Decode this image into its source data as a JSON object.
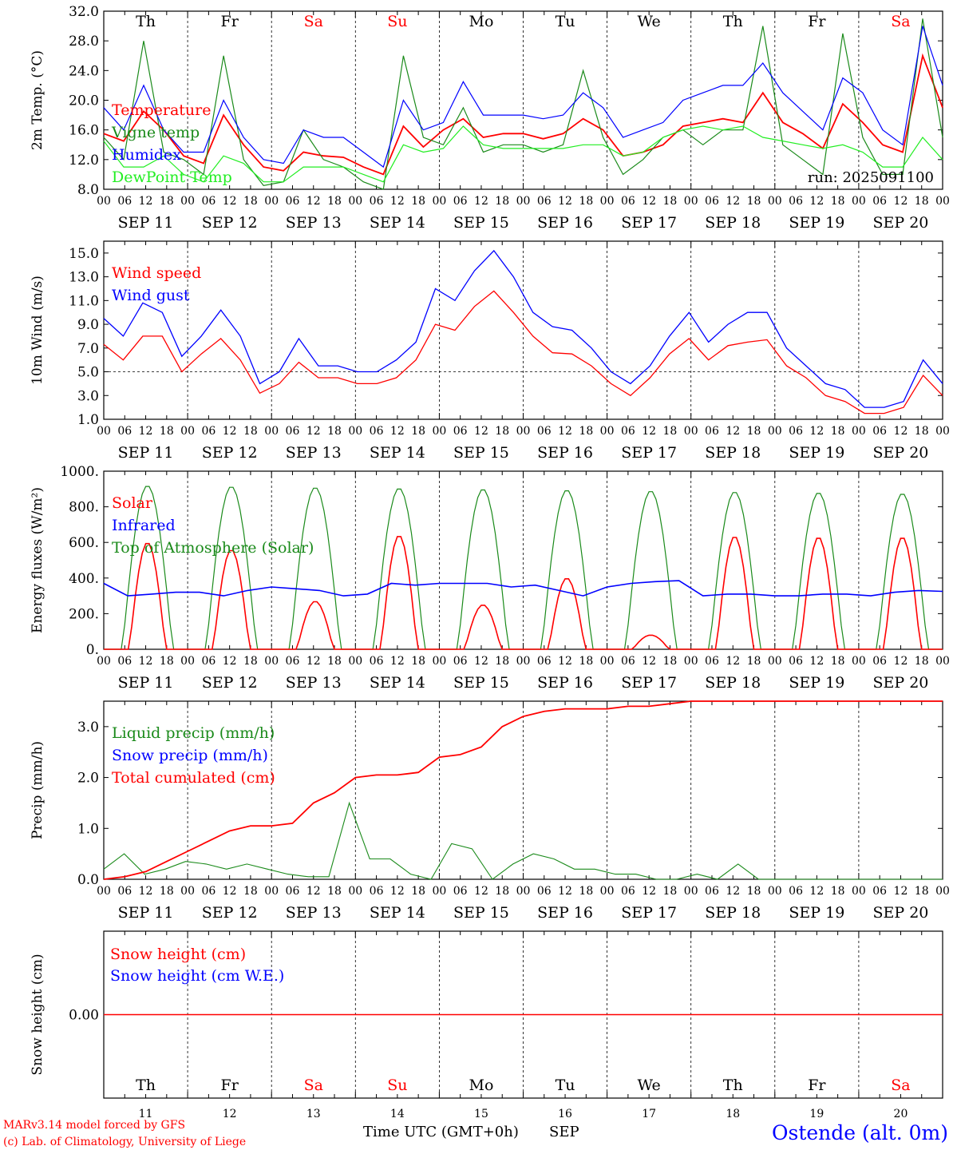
{
  "footer": {
    "model": "MARv3.14 model forced by GFS",
    "credit": "(c) Lab. of Climatology, University of Liege",
    "xlabel": "Time UTC (GMT+0h)",
    "month": "SEP",
    "station": "Ostende (alt. 0m)"
  },
  "colors": {
    "red": "#ff0000",
    "green": "#1a8a1a",
    "blue": "#0000ff",
    "lightgreen": "#22ee22",
    "axis": "#000000"
  },
  "days": [
    "Th",
    "Fr",
    "Sa",
    "Su",
    "Mo",
    "Tu",
    "We",
    "Th",
    "Fr",
    "Sa"
  ],
  "day_colors": [
    "#000000",
    "#000000",
    "#ff0000",
    "#ff0000",
    "#000000",
    "#000000",
    "#000000",
    "#000000",
    "#000000",
    "#ff0000"
  ],
  "dates": [
    "SEP 11",
    "SEP 12",
    "SEP 13",
    "SEP 14",
    "SEP 15",
    "SEP 16",
    "SEP 17",
    "SEP 18",
    "SEP 19",
    "SEP 20"
  ],
  "day_numbers": [
    "11",
    "12",
    "13",
    "14",
    "15",
    "16",
    "17",
    "18",
    "19",
    "20"
  ],
  "hour_ticks": [
    "00",
    "06",
    "12",
    "18"
  ],
  "chart_data": [
    {
      "type": "line",
      "ylabel": "2m Temp. (°C)",
      "ylim": [
        8,
        32
      ],
      "yticks": [
        "8.0",
        "12.0",
        "16.0",
        "20.0",
        "24.0",
        "28.0",
        "32.0"
      ],
      "run_label": "run: 2025091100",
      "x_unit": "hours since SEP 11 00 UTC (step 6h)",
      "series": [
        {
          "name": "Temperature",
          "color": "#ff0000",
          "values": [
            15.5,
            14.5,
            18.5,
            16,
            12.5,
            11.5,
            18,
            14,
            11,
            10.5,
            13,
            12.5,
            12.3,
            11,
            10,
            16.5,
            13.7,
            16,
            17.5,
            15,
            15.5,
            15.5,
            14.8,
            15.5,
            17.5,
            16,
            12.5,
            13,
            14,
            16.5,
            17,
            17.5,
            17,
            21,
            17,
            15.5,
            13.5,
            19.5,
            17,
            14,
            13,
            26,
            19
          ]
        },
        {
          "name": "Vigne temp",
          "color": "#1a8a1a",
          "values": [
            15,
            12,
            28,
            13,
            12,
            10,
            26,
            12,
            8.5,
            9,
            16,
            12,
            11,
            9,
            8,
            26,
            15,
            14,
            19,
            13,
            14,
            14,
            13,
            14,
            24,
            15,
            10,
            12,
            15,
            16,
            14,
            16,
            16,
            30,
            14,
            12,
            10,
            29,
            15,
            10,
            10,
            31,
            15
          ]
        },
        {
          "name": "Humidex",
          "color": "#0000ff",
          "values": [
            19,
            16,
            22,
            16,
            13,
            13,
            20,
            15,
            12,
            11.5,
            16,
            15,
            15,
            13,
            11,
            20,
            16,
            17,
            22.5,
            18,
            18,
            18,
            17.5,
            18,
            21,
            19,
            15,
            16,
            17,
            20,
            21,
            22,
            22,
            25,
            21,
            18.5,
            16,
            23,
            21,
            16,
            14,
            30,
            22
          ]
        },
        {
          "name": "DewPoint Temp",
          "color": "#22ee22",
          "values": [
            14.5,
            11,
            11,
            12.5,
            10,
            9,
            12.5,
            11.5,
            9,
            9,
            11,
            11,
            11,
            10,
            9,
            14,
            13,
            13.5,
            16.5,
            14,
            13.5,
            13.5,
            13.5,
            13.5,
            14,
            14,
            12.5,
            13,
            15,
            16,
            16.5,
            16,
            16.5,
            15,
            14.5,
            14,
            13.5,
            14,
            13,
            11,
            11,
            15,
            12
          ]
        }
      ]
    },
    {
      "type": "line",
      "ylabel": "10m Wind (m/s)",
      "ylim": [
        1,
        16
      ],
      "yticks": [
        "1.0",
        "3.0",
        "5.0",
        "7.0",
        "9.0",
        "11.0",
        "13.0",
        "15.0"
      ],
      "reference_line": 5,
      "series": [
        {
          "name": "Wind speed",
          "color": "#ff0000",
          "values": [
            7.3,
            6,
            8,
            8,
            5,
            6.5,
            7.8,
            6,
            3.2,
            4,
            5.8,
            4.5,
            4.5,
            4,
            4,
            4.5,
            6,
            9,
            8.5,
            10.5,
            11.8,
            10,
            8,
            6.6,
            6.5,
            5.5,
            4,
            3,
            4.5,
            6.5,
            7.8,
            6,
            7.2,
            7.5,
            7.7,
            5.5,
            4.5,
            3,
            2.5,
            1.5,
            1.5,
            2,
            4.7,
            3
          ]
        },
        {
          "name": "Wind gust",
          "color": "#0000ff",
          "values": [
            9.5,
            8,
            10.8,
            10,
            6.3,
            8,
            10.2,
            8,
            4,
            5,
            7.8,
            5.5,
            5.5,
            5,
            5,
            6,
            7.5,
            12,
            11,
            13.5,
            15.2,
            13,
            10,
            8.8,
            8.5,
            7,
            5,
            4,
            5.5,
            8,
            10,
            7.5,
            9,
            10,
            10,
            7,
            5.5,
            4,
            3.5,
            2,
            2,
            2.5,
            6,
            4
          ]
        }
      ]
    },
    {
      "type": "line",
      "ylabel": "Energy fluxes (W/m²)",
      "ylim": [
        0,
        1000
      ],
      "yticks": [
        "0.",
        "200.",
        "400.",
        "600.",
        "800.",
        "1000."
      ],
      "series": [
        {
          "name": "Solar",
          "color": "#ff0000",
          "peaks": [
            600,
            560,
            270,
            640,
            250,
            400,
            80,
            635,
            630,
            630
          ]
        },
        {
          "name": "Infrared",
          "color": "#0000ff",
          "values": [
            370,
            300,
            310,
            320,
            320,
            300,
            330,
            350,
            340,
            330,
            300,
            310,
            370,
            360,
            370,
            370,
            370,
            350,
            360,
            330,
            300,
            350,
            370,
            380,
            385,
            300,
            310,
            310,
            300,
            300,
            310,
            310,
            300,
            320,
            330,
            325
          ]
        },
        {
          "name": "Top of Atmosphere (Solar)",
          "color": "#1a8a1a",
          "peaks": [
            920,
            915,
            910,
            905,
            900,
            895,
            890,
            885,
            880,
            875
          ]
        }
      ]
    },
    {
      "type": "line",
      "ylabel": "Precip (mm/h)",
      "ylim": [
        0,
        3.5
      ],
      "yticks": [
        "0.0",
        "1.0",
        "2.0",
        "3.0"
      ],
      "series": [
        {
          "name": "Liquid precip (mm/h)",
          "color": "#1a8a1a",
          "values": [
            0.2,
            0.5,
            0.1,
            0.2,
            0.35,
            0.3,
            0.2,
            0.3,
            0.2,
            0.1,
            0.05,
            0.05,
            1.5,
            0.4,
            0.4,
            0.1,
            0,
            0.7,
            0.6,
            0,
            0.3,
            0.5,
            0.4,
            0.2,
            0.2,
            0.1,
            0.1,
            0,
            0,
            0.1,
            0,
            0.3,
            0,
            0,
            0,
            0,
            0,
            0,
            0,
            0,
            0,
            0
          ]
        },
        {
          "name": "Snow precip (mm/h)",
          "color": "#0000ff",
          "values": []
        },
        {
          "name": "Total cumulated (cm)",
          "color": "#ff0000",
          "values": [
            0,
            0.05,
            0.15,
            0.35,
            0.55,
            0.75,
            0.95,
            1.05,
            1.05,
            1.1,
            1.5,
            1.7,
            2.0,
            2.05,
            2.05,
            2.1,
            2.4,
            2.45,
            2.6,
            3.0,
            3.2,
            3.3,
            3.35,
            3.35,
            3.35,
            3.4,
            3.4,
            3.45,
            3.5,
            3.5,
            3.5,
            3.5,
            3.5,
            3.5,
            3.5,
            3.5,
            3.5,
            3.5,
            3.5,
            3.5,
            3.5
          ]
        }
      ]
    },
    {
      "type": "line",
      "ylabel": "Snow height (cm)",
      "ylim": [
        -1,
        1
      ],
      "yticks": [
        "0.00"
      ],
      "series": [
        {
          "name": "Snow height (cm)",
          "color": "#ff0000",
          "values": [
            0,
            0
          ]
        },
        {
          "name": "Snow height (cm W.E.)",
          "color": "#0000ff",
          "values": [
            0,
            0
          ]
        }
      ]
    }
  ]
}
